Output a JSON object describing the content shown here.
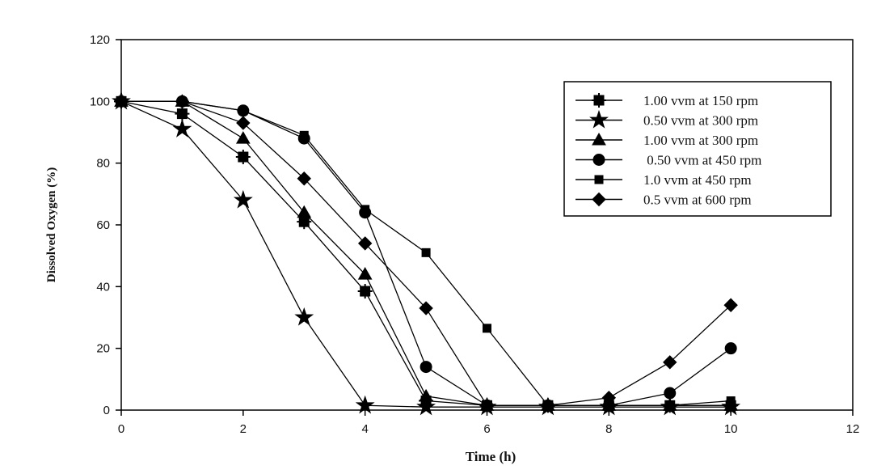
{
  "chart_data": {
    "type": "line",
    "xlabel": "Time (h)",
    "ylabel": "Dissolved Oxygen (%)",
    "xlim": [
      0,
      12
    ],
    "ylim": [
      0,
      120
    ],
    "xticks": [
      "0",
      "2",
      "4",
      "6",
      "8",
      "10",
      "12"
    ],
    "yticks": [
      "0",
      "20",
      "40",
      "60",
      "80",
      "100",
      "120"
    ],
    "grid": false,
    "legend_position": "top-right",
    "series": [
      {
        "name": "1.00 vvm at 150 rpm",
        "marker": "plus-square",
        "x": [
          0,
          1,
          2,
          3,
          4,
          5,
          6,
          7,
          8,
          9,
          10
        ],
        "y": [
          100,
          96,
          82,
          61,
          38.5,
          3,
          1.5,
          1.5,
          1.5,
          1.5,
          1.5
        ]
      },
      {
        "name": "0.50 vvm at 300 rpm",
        "marker": "star",
        "x": [
          0,
          1,
          2,
          3,
          4,
          5,
          6,
          7,
          8,
          9,
          10
        ],
        "y": [
          100,
          91,
          68,
          30,
          1.5,
          1,
          1,
          1,
          1,
          1,
          1
        ]
      },
      {
        "name": "1.00 vvm at 300 rpm",
        "marker": "triangle",
        "x": [
          0,
          1,
          2,
          3,
          4,
          5,
          6,
          7,
          8,
          9,
          10
        ],
        "y": [
          100,
          100,
          88,
          64,
          44,
          4.5,
          1.5,
          1.5,
          1.5,
          1.5,
          1.5
        ]
      },
      {
        "name": " 0.50 vvm at 450 rpm",
        "marker": "circle",
        "x": [
          0,
          1,
          2,
          3,
          4,
          5,
          6,
          7,
          8,
          9,
          10
        ],
        "y": [
          100,
          100,
          97,
          88,
          64,
          14,
          1.5,
          1.5,
          1.5,
          5.5,
          20
        ]
      },
      {
        "name": "1.0 vvm at 450 rpm",
        "marker": "square",
        "x": [
          0,
          1,
          2,
          3,
          4,
          5,
          6,
          7,
          8,
          9,
          10
        ],
        "y": [
          100,
          100,
          97,
          89,
          65,
          51,
          26.5,
          1.5,
          1.5,
          1.5,
          3
        ]
      },
      {
        "name": "0.5 vvm at 600 rpm",
        "marker": "diamond",
        "x": [
          0,
          1,
          2,
          3,
          4,
          5,
          6,
          7,
          8,
          9,
          10
        ],
        "y": [
          100,
          100,
          93,
          75,
          54,
          33,
          1.5,
          1.5,
          4,
          15.5,
          34
        ]
      }
    ]
  }
}
